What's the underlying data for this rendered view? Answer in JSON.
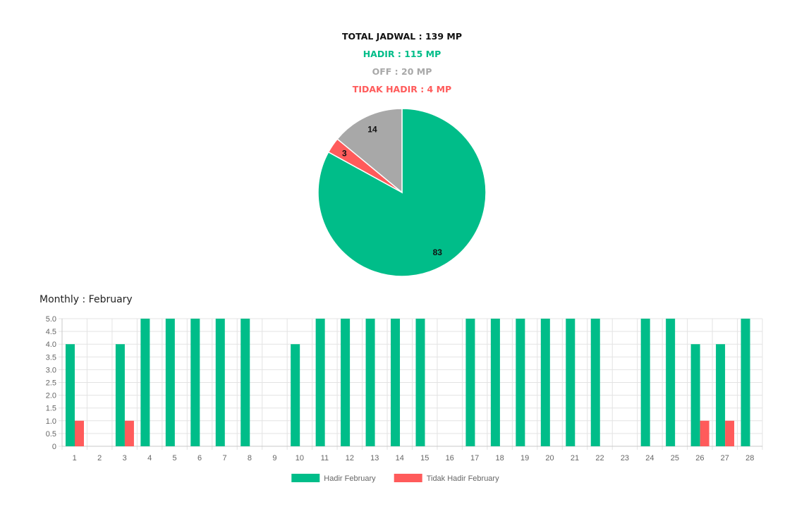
{
  "summary": {
    "total": "TOTAL JADWAL : 139 MP",
    "hadir": "HADIR : 115 MP",
    "off": "OFF : 20 MP",
    "tidak_hadir": "TIDAK HADIR : 4 MP"
  },
  "monthly_title": "Monthly : February",
  "colors": {
    "hadir": "#00bd89",
    "tidak_hadir": "#ff5b5b",
    "off": "#a8a8a8"
  },
  "chart_data": [
    {
      "type": "pie",
      "slices": [
        {
          "value": 83,
          "color": "#00bd89",
          "label": "83"
        },
        {
          "value": 3,
          "color": "#ff5b5b",
          "label": "3"
        },
        {
          "value": 14,
          "color": "#a8a8a8",
          "label": "14"
        }
      ]
    },
    {
      "type": "bar",
      "categories": [
        "1",
        "2",
        "3",
        "4",
        "5",
        "6",
        "7",
        "8",
        "9",
        "10",
        "11",
        "12",
        "13",
        "14",
        "15",
        "16",
        "17",
        "18",
        "19",
        "20",
        "21",
        "22",
        "23",
        "24",
        "25",
        "26",
        "27",
        "28"
      ],
      "series": [
        {
          "name": "Hadir February",
          "color": "#00bd89",
          "values": [
            4,
            0,
            4,
            5,
            5,
            5,
            5,
            5,
            0,
            4,
            5,
            5,
            5,
            5,
            5,
            0,
            5,
            5,
            5,
            5,
            5,
            5,
            0,
            5,
            5,
            4,
            4,
            5
          ]
        },
        {
          "name": "Tidak Hadir February",
          "color": "#ff5b5b",
          "values": [
            1,
            0,
            1,
            0,
            0,
            0,
            0,
            0,
            0,
            0,
            0,
            0,
            0,
            0,
            0,
            0,
            0,
            0,
            0,
            0,
            0,
            0,
            0,
            0,
            0,
            1,
            1,
            0
          ]
        }
      ],
      "ylim": [
        0,
        5
      ],
      "yticks": [
        "0",
        "0.5",
        "1.0",
        "1.5",
        "2.0",
        "2.5",
        "3.0",
        "3.5",
        "4.0",
        "4.5",
        "5.0"
      ],
      "grid": true,
      "legend": "bottom"
    }
  ]
}
